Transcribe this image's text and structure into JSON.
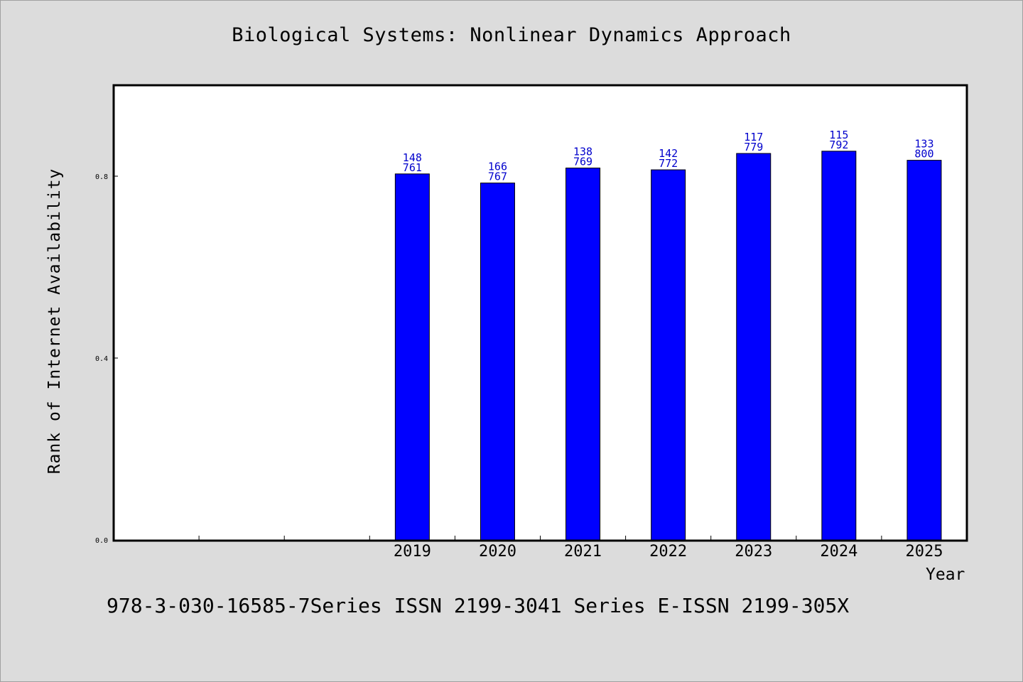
{
  "chart_data": {
    "type": "bar",
    "title": "Biological Systems: Nonlinear Dynamics Approach",
    "xlabel": "Year",
    "ylabel": "Rank of Internet Availability",
    "categories": [
      "",
      "",
      "",
      "2019",
      "2020",
      "2021",
      "2022",
      "2023",
      "2024",
      "2025"
    ],
    "values": [
      null,
      null,
      null,
      0.805,
      0.785,
      0.818,
      0.814,
      0.85,
      0.855,
      0.835
    ],
    "bar_labels": [
      null,
      null,
      null,
      [
        "148",
        "761"
      ],
      [
        "166",
        "767"
      ],
      [
        "138",
        "769"
      ],
      [
        "142",
        "772"
      ],
      [
        "117",
        "779"
      ],
      [
        "115",
        "792"
      ],
      [
        "133",
        "800"
      ]
    ],
    "yticks": [
      "0.0",
      "0.4",
      "0.8"
    ],
    "ylim": [
      0,
      1.0
    ],
    "grid": false,
    "legend": "none",
    "colors": {
      "bar": "#0000ff",
      "bar_label": "#0000cc",
      "plot_bg": "#ffffff",
      "page_bg": "#dcdcdc"
    }
  },
  "footer": "978-3-030-16585-7Series ISSN 2199-3041 Series E-ISSN 2199-305X"
}
